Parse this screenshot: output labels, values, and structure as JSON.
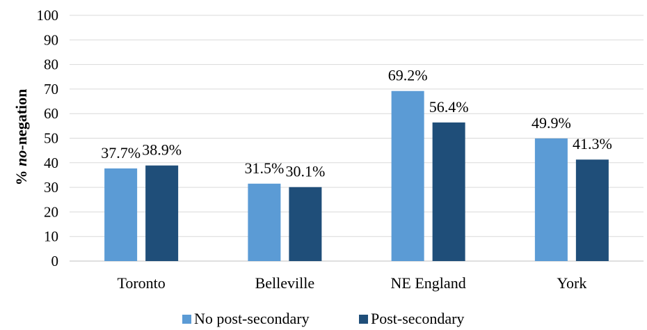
{
  "chart_data": {
    "type": "bar",
    "categories": [
      "Toronto",
      "Belleville",
      "NE England",
      "York"
    ],
    "series": [
      {
        "name": "No post-secondary",
        "values": [
          37.7,
          31.5,
          69.2,
          49.9
        ],
        "labels": [
          "37.7%",
          "31.5%",
          "69.2%",
          "49.9%"
        ],
        "color": "#5b9bd5"
      },
      {
        "name": "Post-secondary",
        "values": [
          38.9,
          30.1,
          56.4,
          41.3
        ],
        "labels": [
          "38.9%",
          "30.1%",
          "56.4%",
          "41.3%"
        ],
        "color": "#1f4e79"
      }
    ],
    "ylabel_prefix": "% ",
    "ylabel_emph": "no",
    "ylabel_suffix": "-negation",
    "ylim": [
      0,
      100
    ],
    "yticks": [
      0,
      10,
      20,
      30,
      40,
      50,
      60,
      70,
      80,
      90,
      100
    ],
    "grid": true,
    "gridline_color": "#d9d9d9",
    "legend_position": "bottom"
  }
}
